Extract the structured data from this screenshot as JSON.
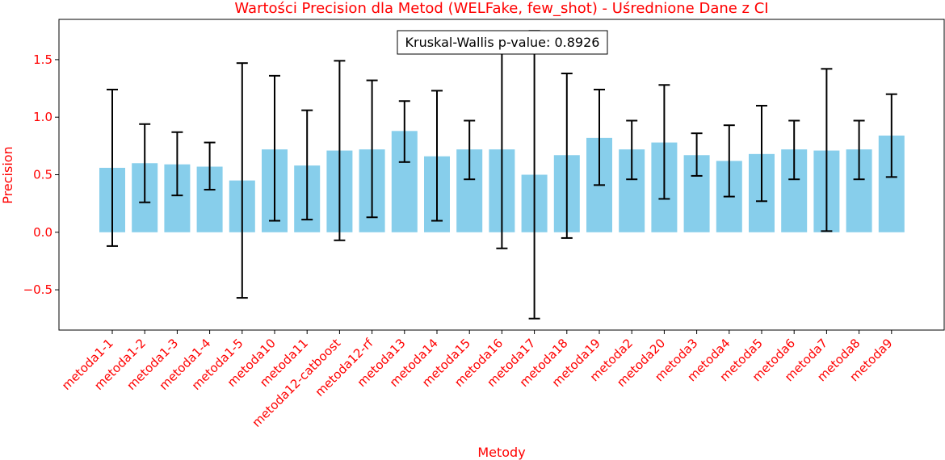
{
  "chart_data": {
    "type": "bar",
    "title": "Wartości Precision dla Metod (WELFake, few_shot) - Uśrednione Dane z CI",
    "xlabel": "Metody",
    "ylabel": "Precision",
    "annotation": "Kruskal-Wallis p-value: 0.8926",
    "ylim": [
      -0.85,
      1.85
    ],
    "yticks": [
      -0.5,
      0.0,
      0.5,
      1.0,
      1.5
    ],
    "ytick_labels": [
      "−0.5",
      "0.0",
      "0.5",
      "1.0",
      "1.5"
    ],
    "grid": false,
    "categories": [
      "metoda1-1",
      "metoda1-2",
      "metoda1-3",
      "metoda1-4",
      "metoda1-5",
      "metoda10",
      "metoda11",
      "metoda12-catboost",
      "metoda12-rf",
      "metoda13",
      "metoda14",
      "metoda15",
      "metoda16",
      "metoda17",
      "metoda18",
      "metoda19",
      "metoda2",
      "metoda20",
      "metoda3",
      "metoda4",
      "metoda5",
      "metoda6",
      "metoda7",
      "metoda8",
      "metoda9"
    ],
    "values": [
      0.56,
      0.6,
      0.59,
      0.57,
      0.45,
      0.72,
      0.58,
      0.71,
      0.72,
      0.88,
      0.66,
      0.72,
      0.72,
      0.5,
      0.67,
      0.82,
      0.72,
      0.78,
      0.67,
      0.62,
      0.68,
      0.72,
      0.71,
      0.72,
      0.84
    ],
    "ci_low": [
      -0.12,
      0.26,
      0.32,
      0.37,
      -0.57,
      0.1,
      0.11,
      -0.07,
      0.13,
      0.61,
      0.1,
      0.46,
      -0.14,
      -0.75,
      -0.05,
      0.41,
      0.46,
      0.29,
      0.49,
      0.31,
      0.27,
      0.46,
      0.01,
      0.46,
      0.48
    ],
    "ci_high": [
      1.24,
      0.94,
      0.87,
      0.78,
      1.47,
      1.36,
      1.06,
      1.49,
      1.32,
      1.14,
      1.23,
      0.97,
      1.61,
      1.75,
      1.38,
      1.24,
      0.97,
      1.28,
      0.86,
      0.93,
      1.1,
      0.97,
      1.42,
      0.97,
      1.2
    ],
    "colors": {
      "bar": "#87CEEB",
      "error": "#000000",
      "text_accent": "#ff0000",
      "axis": "#000000"
    }
  }
}
